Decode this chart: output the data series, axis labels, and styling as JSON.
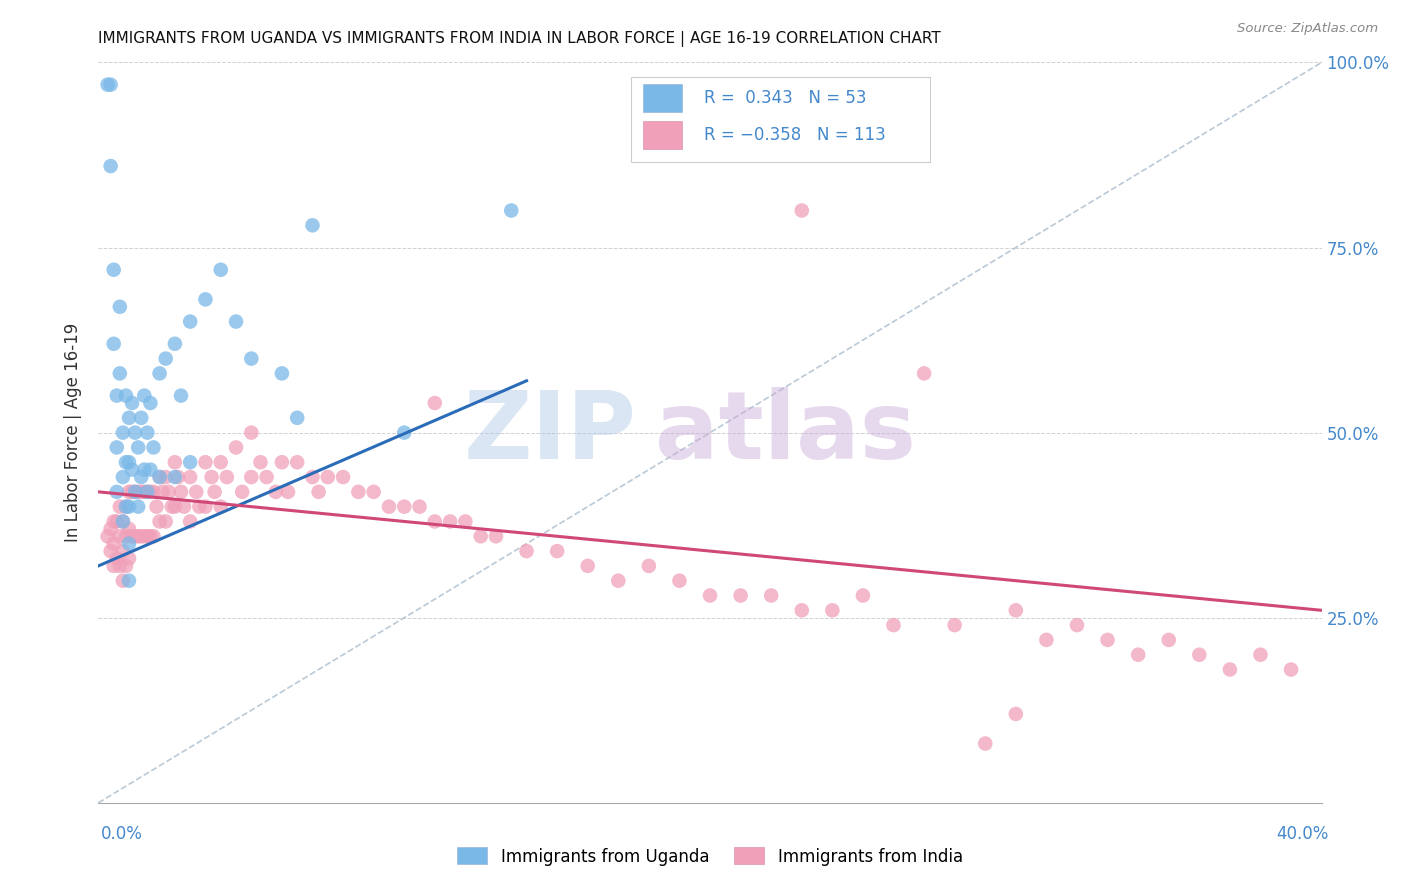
{
  "title": "IMMIGRANTS FROM UGANDA VS IMMIGRANTS FROM INDIA IN LABOR FORCE | AGE 16-19 CORRELATION CHART",
  "source": "Source: ZipAtlas.com",
  "uganda_color": "#7ab8e8",
  "india_color": "#f0a0b8",
  "uganda_line_color": "#2b6cb8",
  "india_line_color": "#d04878",
  "diag_color": "#aabbcc",
  "background_color": "#ffffff",
  "grid_color": "#cccccc",
  "axis_label_color": "#4488cc",
  "ylabel": "In Labor Force | Age 16-19",
  "xlim": [
    0.0,
    0.4
  ],
  "ylim": [
    0.0,
    1.0
  ],
  "uganda_points_x": [
    0.003,
    0.004,
    0.004,
    0.005,
    0.005,
    0.006,
    0.006,
    0.006,
    0.007,
    0.007,
    0.008,
    0.008,
    0.008,
    0.009,
    0.009,
    0.009,
    0.01,
    0.01,
    0.01,
    0.01,
    0.01,
    0.011,
    0.011,
    0.012,
    0.012,
    0.013,
    0.013,
    0.014,
    0.014,
    0.015,
    0.015,
    0.016,
    0.016,
    0.017,
    0.017,
    0.018,
    0.02,
    0.02,
    0.022,
    0.025,
    0.025,
    0.027,
    0.03,
    0.03,
    0.035,
    0.04,
    0.045,
    0.05,
    0.06,
    0.065,
    0.07,
    0.1,
    0.135
  ],
  "uganda_points_y": [
    0.97,
    0.97,
    0.86,
    0.72,
    0.62,
    0.55,
    0.48,
    0.42,
    0.67,
    0.58,
    0.5,
    0.44,
    0.38,
    0.55,
    0.46,
    0.4,
    0.52,
    0.46,
    0.4,
    0.35,
    0.3,
    0.54,
    0.45,
    0.5,
    0.42,
    0.48,
    0.4,
    0.52,
    0.44,
    0.55,
    0.45,
    0.5,
    0.42,
    0.54,
    0.45,
    0.48,
    0.58,
    0.44,
    0.6,
    0.62,
    0.44,
    0.55,
    0.65,
    0.46,
    0.68,
    0.72,
    0.65,
    0.6,
    0.58,
    0.52,
    0.78,
    0.5,
    0.8
  ],
  "india_points_x": [
    0.003,
    0.004,
    0.004,
    0.005,
    0.005,
    0.005,
    0.006,
    0.006,
    0.007,
    0.007,
    0.007,
    0.008,
    0.008,
    0.008,
    0.009,
    0.009,
    0.009,
    0.01,
    0.01,
    0.01,
    0.011,
    0.011,
    0.012,
    0.012,
    0.013,
    0.013,
    0.014,
    0.014,
    0.015,
    0.015,
    0.016,
    0.016,
    0.017,
    0.017,
    0.018,
    0.018,
    0.019,
    0.02,
    0.02,
    0.021,
    0.022,
    0.022,
    0.023,
    0.024,
    0.025,
    0.025,
    0.026,
    0.027,
    0.028,
    0.03,
    0.03,
    0.032,
    0.033,
    0.035,
    0.035,
    0.037,
    0.038,
    0.04,
    0.04,
    0.042,
    0.045,
    0.047,
    0.05,
    0.05,
    0.053,
    0.055,
    0.058,
    0.06,
    0.062,
    0.065,
    0.07,
    0.072,
    0.075,
    0.08,
    0.085,
    0.09,
    0.095,
    0.1,
    0.105,
    0.11,
    0.115,
    0.12,
    0.125,
    0.13,
    0.14,
    0.15,
    0.16,
    0.17,
    0.18,
    0.19,
    0.2,
    0.21,
    0.22,
    0.23,
    0.24,
    0.25,
    0.26,
    0.28,
    0.3,
    0.31,
    0.32,
    0.33,
    0.34,
    0.35,
    0.36,
    0.37,
    0.38,
    0.39,
    0.23,
    0.27,
    0.11,
    0.29,
    0.3
  ],
  "india_points_y": [
    0.36,
    0.37,
    0.34,
    0.38,
    0.35,
    0.32,
    0.38,
    0.33,
    0.4,
    0.36,
    0.32,
    0.38,
    0.34,
    0.3,
    0.4,
    0.36,
    0.32,
    0.42,
    0.37,
    0.33,
    0.42,
    0.36,
    0.42,
    0.36,
    0.42,
    0.36,
    0.42,
    0.36,
    0.42,
    0.36,
    0.42,
    0.36,
    0.42,
    0.36,
    0.42,
    0.36,
    0.4,
    0.44,
    0.38,
    0.42,
    0.44,
    0.38,
    0.42,
    0.4,
    0.46,
    0.4,
    0.44,
    0.42,
    0.4,
    0.44,
    0.38,
    0.42,
    0.4,
    0.46,
    0.4,
    0.44,
    0.42,
    0.46,
    0.4,
    0.44,
    0.48,
    0.42,
    0.5,
    0.44,
    0.46,
    0.44,
    0.42,
    0.46,
    0.42,
    0.46,
    0.44,
    0.42,
    0.44,
    0.44,
    0.42,
    0.42,
    0.4,
    0.4,
    0.4,
    0.38,
    0.38,
    0.38,
    0.36,
    0.36,
    0.34,
    0.34,
    0.32,
    0.3,
    0.32,
    0.3,
    0.28,
    0.28,
    0.28,
    0.26,
    0.26,
    0.28,
    0.24,
    0.24,
    0.26,
    0.22,
    0.24,
    0.22,
    0.2,
    0.22,
    0.2,
    0.18,
    0.2,
    0.18,
    0.8,
    0.58,
    0.54,
    0.08,
    0.12
  ],
  "uganda_line_x": [
    0.0,
    0.14
  ],
  "uganda_line_y": [
    0.32,
    0.57
  ],
  "india_line_x": [
    0.0,
    0.4
  ],
  "india_line_y": [
    0.42,
    0.26
  ],
  "diag_line_x": [
    0.0,
    0.4
  ],
  "diag_line_y": [
    0.0,
    1.0
  ]
}
